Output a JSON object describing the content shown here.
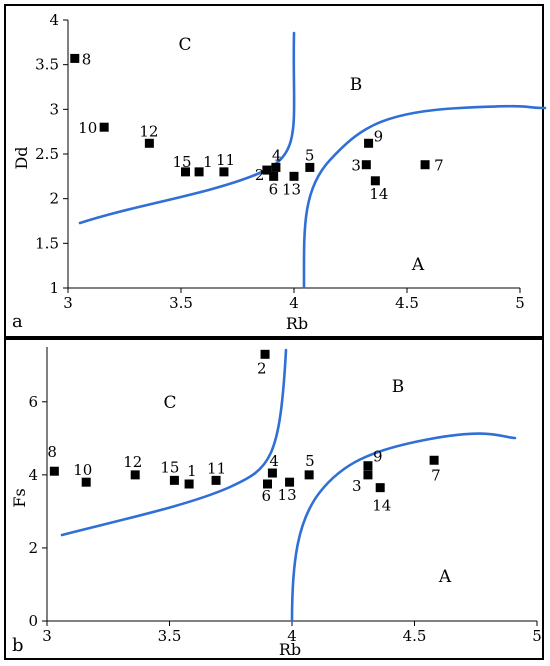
{
  "chart_data": [
    {
      "type": "scatter",
      "panel": "a",
      "xlabel": "Rb",
      "ylabel": "Dd",
      "xlim": [
        3,
        5
      ],
      "ylim": [
        1,
        4
      ],
      "xticks": [
        "3",
        "3.5",
        "4",
        "4.5",
        "5"
      ],
      "yticks": [
        "1",
        "1.5",
        "2",
        "2.5",
        "3",
        "3.5",
        "4"
      ],
      "regions": [
        "A",
        "B",
        "C"
      ],
      "points": [
        {
          "label": "1",
          "x": 3.58,
          "y": 2.3
        },
        {
          "label": "2",
          "x": 3.88,
          "y": 2.32
        },
        {
          "label": "3",
          "x": 4.32,
          "y": 2.38
        },
        {
          "label": "4",
          "x": 3.92,
          "y": 2.35
        },
        {
          "label": "5",
          "x": 4.07,
          "y": 2.35
        },
        {
          "label": "6",
          "x": 3.91,
          "y": 2.25
        },
        {
          "label": "7",
          "x": 4.58,
          "y": 2.38
        },
        {
          "label": "8",
          "x": 3.03,
          "y": 3.57
        },
        {
          "label": "9",
          "x": 4.33,
          "y": 2.62
        },
        {
          "label": "10",
          "x": 3.16,
          "y": 2.8
        },
        {
          "label": "11",
          "x": 3.69,
          "y": 2.3
        },
        {
          "label": "12",
          "x": 3.36,
          "y": 2.62
        },
        {
          "label": "13",
          "x": 4.0,
          "y": 2.25
        },
        {
          "label": "14",
          "x": 4.36,
          "y": 2.2
        },
        {
          "label": "15",
          "x": 3.52,
          "y": 2.3
        }
      ]
    },
    {
      "type": "scatter",
      "panel": "b",
      "xlabel": "Rb",
      "ylabel": "Fs",
      "xlim": [
        3,
        5
      ],
      "ylim": [
        0,
        7.5
      ],
      "xticks": [
        "3",
        "3.5",
        "4",
        "4.5",
        "5"
      ],
      "yticks": [
        "0",
        "2",
        "4",
        "6"
      ],
      "regions": [
        "A",
        "B",
        "C"
      ],
      "points": [
        {
          "label": "1",
          "x": 3.58,
          "y": 3.75
        },
        {
          "label": "2",
          "x": 3.89,
          "y": 7.3
        },
        {
          "label": "3",
          "x": 4.31,
          "y": 4.0
        },
        {
          "label": "4",
          "x": 3.92,
          "y": 4.05
        },
        {
          "label": "5",
          "x": 4.07,
          "y": 4.0
        },
        {
          "label": "6",
          "x": 3.9,
          "y": 3.75
        },
        {
          "label": "7",
          "x": 4.58,
          "y": 4.4
        },
        {
          "label": "8",
          "x": 3.03,
          "y": 4.1
        },
        {
          "label": "9",
          "x": 4.31,
          "y": 4.25
        },
        {
          "label": "10",
          "x": 3.16,
          "y": 3.8
        },
        {
          "label": "11",
          "x": 3.69,
          "y": 3.85
        },
        {
          "label": "12",
          "x": 3.36,
          "y": 4.0
        },
        {
          "label": "13",
          "x": 3.99,
          "y": 3.8
        },
        {
          "label": "14",
          "x": 4.36,
          "y": 3.65
        },
        {
          "label": "15",
          "x": 3.52,
          "y": 3.85
        }
      ]
    }
  ]
}
